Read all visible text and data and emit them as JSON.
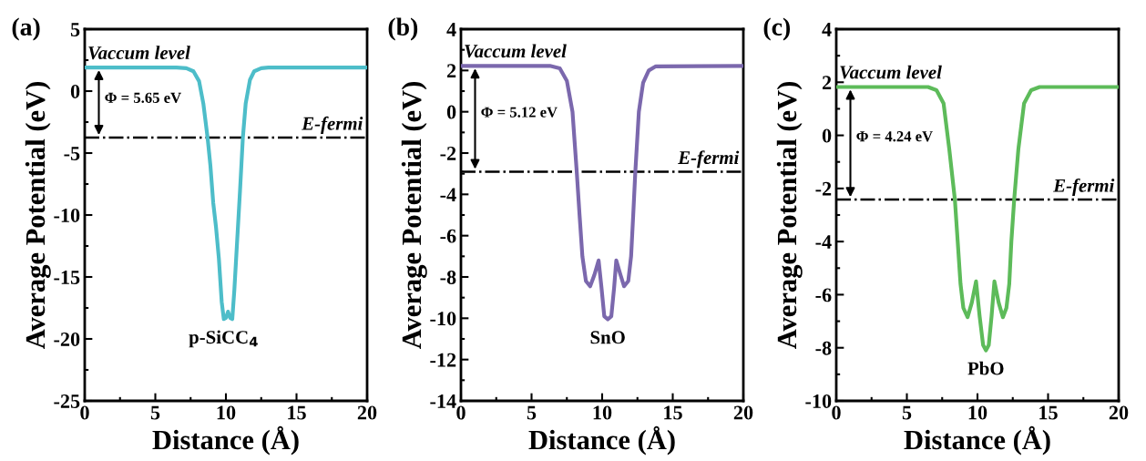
{
  "chart_data": [
    {
      "type": "line",
      "title": "(a)",
      "xlabel": "Distance (Å)",
      "ylabel": "Average Potential (eV)",
      "xlim": [
        0,
        20
      ],
      "xticks": [
        0,
        5,
        10,
        15,
        20
      ],
      "ylim": [
        -25,
        5
      ],
      "yticks": [
        -25,
        -20,
        -15,
        -10,
        -5,
        0,
        5
      ],
      "grid": false,
      "marker": "none",
      "line_style": "solid",
      "series": [
        {
          "color": "#4dbdc9",
          "x": [
            0,
            6.5,
            7.2,
            7.7,
            8.1,
            8.4,
            8.7,
            8.9,
            9.1,
            9.3,
            9.5,
            9.7,
            9.85,
            10.0,
            10.15,
            10.3,
            10.45,
            10.6,
            10.8,
            11.0,
            11.2,
            11.4,
            11.7,
            12.0,
            12.5,
            13,
            20
          ],
          "values": [
            1.9,
            1.9,
            1.85,
            1.6,
            0.8,
            -1,
            -3.75,
            -6,
            -9,
            -11,
            -13.5,
            -17,
            -18.4,
            -18.3,
            -17.8,
            -18.3,
            -18.4,
            -16,
            -12,
            -8,
            -3.75,
            -1,
            0.9,
            1.6,
            1.85,
            1.9,
            1.9
          ]
        }
      ],
      "ref_lines": [
        {
          "axis": "y",
          "value": -3.75,
          "label": "E-fermi",
          "color": "#000000",
          "line_style": "dashdot"
        }
      ],
      "annotations": [
        "Vaccum level",
        "Φ = 5.65 eV",
        "p-SiCC$_{4}$"
      ]
    },
    {
      "type": "line",
      "title": "(b)",
      "xlabel": "Distance (Å)",
      "ylabel": "Average Potential (eV)",
      "xlim": [
        0,
        20
      ],
      "xticks": [
        0,
        5,
        10,
        15,
        20
      ],
      "ylim": [
        -14,
        4
      ],
      "yticks": [
        -14,
        -12,
        -10,
        -8,
        -6,
        -4,
        -2,
        0,
        2,
        4
      ],
      "grid": false,
      "marker": "none",
      "line_style": "solid",
      "series": [
        {
          "color": "#7b68ad",
          "x": [
            0,
            6.3,
            7.0,
            7.5,
            7.9,
            8.2,
            8.4,
            8.6,
            8.85,
            9.15,
            9.45,
            9.75,
            9.95,
            10.15,
            10.4,
            10.65,
            10.85,
            11.0,
            11.3,
            11.55,
            11.85,
            12.05,
            12.2,
            12.35,
            12.6,
            12.9,
            13.3,
            13.8,
            20
          ],
          "values": [
            2.22,
            2.22,
            2.1,
            1.5,
            0,
            -2.9,
            -5,
            -7,
            -8.2,
            -8.45,
            -7.9,
            -7.2,
            -8.5,
            -9.9,
            -10.05,
            -9.9,
            -8.5,
            -7.2,
            -7.9,
            -8.45,
            -8.2,
            -7,
            -5,
            -2.9,
            0,
            1.4,
            2.0,
            2.2,
            2.22
          ]
        }
      ],
      "ref_lines": [
        {
          "axis": "y",
          "value": -2.9,
          "label": "E-fermi",
          "color": "#000000",
          "line_style": "dashdot"
        }
      ],
      "annotations": [
        "Vaccum level",
        "Φ = 5.12 eV",
        "SnO"
      ]
    },
    {
      "type": "line",
      "title": "(c)",
      "xlabel": "Distance (Å)",
      "ylabel": "Average Potential (eV)",
      "xlim": [
        0,
        20
      ],
      "xticks": [
        0,
        5,
        10,
        15,
        20
      ],
      "ylim": [
        -10,
        4
      ],
      "yticks": [
        -10,
        -8,
        -6,
        -4,
        -2,
        0,
        2,
        4
      ],
      "grid": false,
      "marker": "none",
      "line_style": "solid",
      "series": [
        {
          "color": "#5dbb5a",
          "x": [
            0,
            6.5,
            7.1,
            7.6,
            8.0,
            8.4,
            8.6,
            8.8,
            9.0,
            9.3,
            9.6,
            9.9,
            10.15,
            10.4,
            10.6,
            10.8,
            11.0,
            11.2,
            11.5,
            11.8,
            12.05,
            12.25,
            12.4,
            12.6,
            12.9,
            13.3,
            13.8,
            14.4,
            20
          ],
          "values": [
            1.82,
            1.82,
            1.7,
            1.2,
            -0.5,
            -2.42,
            -4,
            -5.6,
            -6.5,
            -6.85,
            -6.3,
            -5.5,
            -6.8,
            -7.9,
            -8.1,
            -7.9,
            -6.8,
            -5.5,
            -6.3,
            -6.85,
            -6.5,
            -5.6,
            -4,
            -2.42,
            -0.5,
            1.2,
            1.7,
            1.82,
            1.82
          ]
        }
      ],
      "ref_lines": [
        {
          "axis": "y",
          "value": -2.42,
          "label": "E-fermi",
          "color": "#000000",
          "line_style": "dashdot"
        }
      ],
      "annotations": [
        "Vaccum level",
        "Φ = 4.24 eV",
        "PbO"
      ]
    }
  ]
}
